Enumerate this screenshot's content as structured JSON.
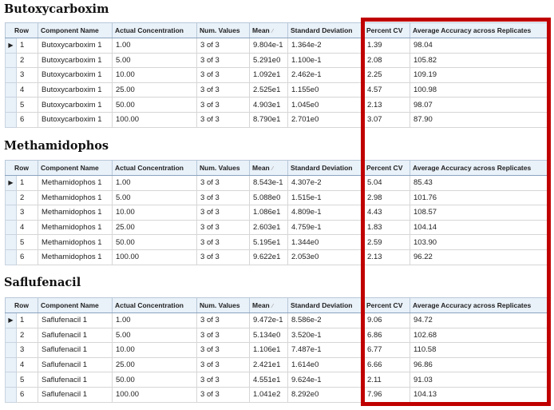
{
  "columns": [
    "Row",
    "Component Name",
    "Actual Concentration",
    "Num. Values",
    "Mean",
    "Standard Deviation",
    "Percent CV",
    "Average Accuracy across Replicates"
  ],
  "highlight_color": "#c00000",
  "sections": [
    {
      "title": "Butoxycarboxim",
      "rows": [
        [
          "1",
          "Butoxycarboxim 1",
          "1.00",
          "3 of 3",
          "9.804e-1",
          "1.364e-2",
          "1.39",
          "98.04"
        ],
        [
          "2",
          "Butoxycarboxim 1",
          "5.00",
          "3 of 3",
          "5.291e0",
          "1.100e-1",
          "2.08",
          "105.82"
        ],
        [
          "3",
          "Butoxycarboxim 1",
          "10.00",
          "3 of 3",
          "1.092e1",
          "2.462e-1",
          "2.25",
          "109.19"
        ],
        [
          "4",
          "Butoxycarboxim 1",
          "25.00",
          "3 of 3",
          "2.525e1",
          "1.155e0",
          "4.57",
          "100.98"
        ],
        [
          "5",
          "Butoxycarboxim 1",
          "50.00",
          "3 of 3",
          "4.903e1",
          "1.045e0",
          "2.13",
          "98.07"
        ],
        [
          "6",
          "Butoxycarboxim 1",
          "100.00",
          "3 of 3",
          "8.790e1",
          "2.701e0",
          "3.07",
          "87.90"
        ]
      ]
    },
    {
      "title": "Methamidophos",
      "rows": [
        [
          "1",
          "Methamidophos 1",
          "1.00",
          "3 of 3",
          "8.543e-1",
          "4.307e-2",
          "5.04",
          "85.43"
        ],
        [
          "2",
          "Methamidophos 1",
          "5.00",
          "3 of 3",
          "5.088e0",
          "1.515e-1",
          "2.98",
          "101.76"
        ],
        [
          "3",
          "Methamidophos 1",
          "10.00",
          "3 of 3",
          "1.086e1",
          "4.809e-1",
          "4.43",
          "108.57"
        ],
        [
          "4",
          "Methamidophos 1",
          "25.00",
          "3 of 3",
          "2.603e1",
          "4.759e-1",
          "1.83",
          "104.14"
        ],
        [
          "5",
          "Methamidophos 1",
          "50.00",
          "3 of 3",
          "5.195e1",
          "1.344e0",
          "2.59",
          "103.90"
        ],
        [
          "6",
          "Methamidophos 1",
          "100.00",
          "3 of 3",
          "9.622e1",
          "2.053e0",
          "2.13",
          "96.22"
        ]
      ]
    },
    {
      "title": "Saflufenacil",
      "rows": [
        [
          "1",
          "Saflufenacil 1",
          "1.00",
          "3 of 3",
          "9.472e-1",
          "8.586e-2",
          "9.06",
          "94.72"
        ],
        [
          "2",
          "Saflufenacil 1",
          "5.00",
          "3 of 3",
          "5.134e0",
          "3.520e-1",
          "6.86",
          "102.68"
        ],
        [
          "3",
          "Saflufenacil 1",
          "10.00",
          "3 of 3",
          "1.106e1",
          "7.487e-1",
          "6.77",
          "110.58"
        ],
        [
          "4",
          "Saflufenacil 1",
          "25.00",
          "3 of 3",
          "2.421e1",
          "1.614e0",
          "6.66",
          "96.86"
        ],
        [
          "5",
          "Saflufenacil 1",
          "50.00",
          "3 of 3",
          "4.551e1",
          "9.624e-1",
          "2.11",
          "91.03"
        ],
        [
          "6",
          "Saflufenacil 1",
          "100.00",
          "3 of 3",
          "1.041e2",
          "8.292e0",
          "7.96",
          "104.13"
        ]
      ]
    }
  ]
}
